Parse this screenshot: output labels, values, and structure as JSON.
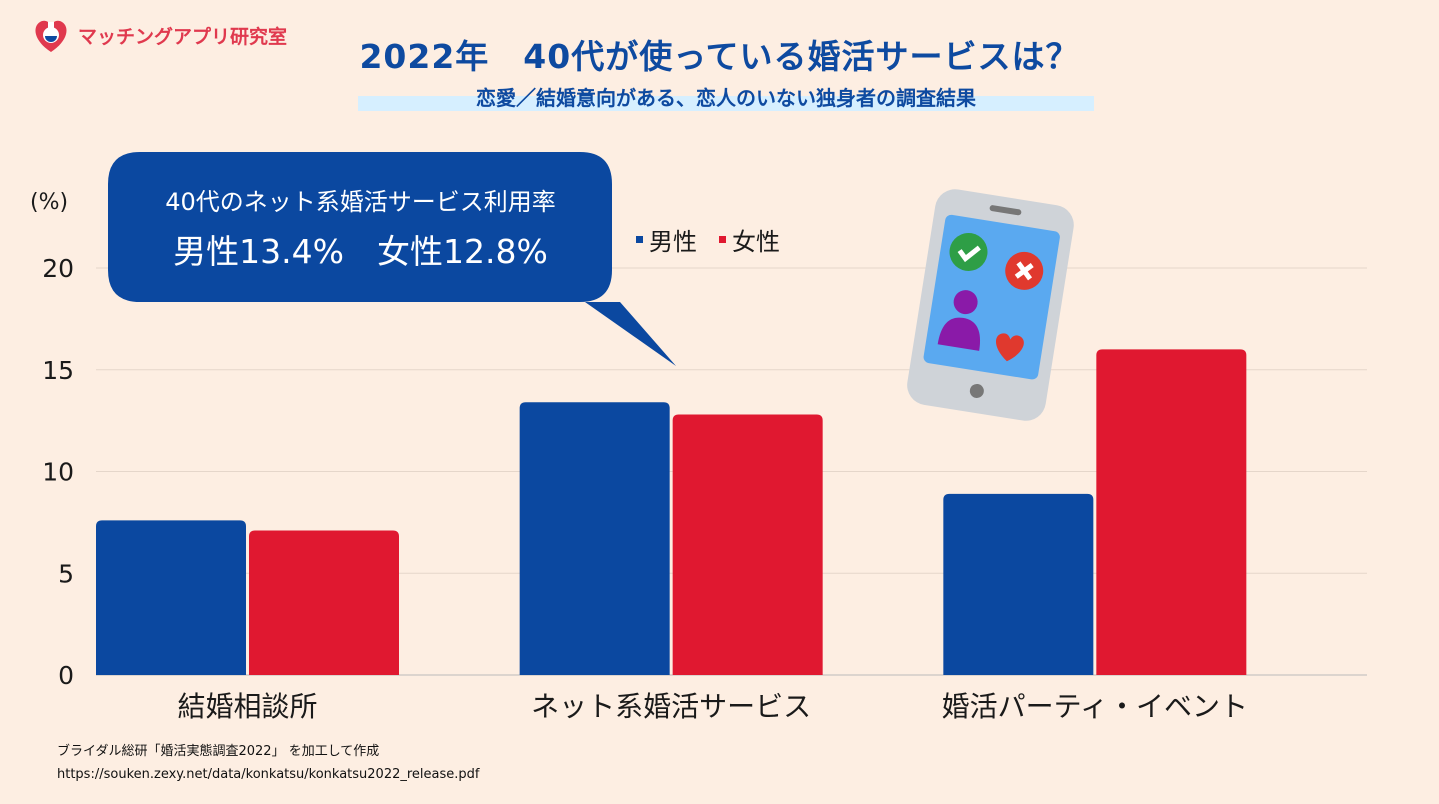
{
  "brand": {
    "name": "マッチングアプリ研究室"
  },
  "title": "2022年　40代が使っている婚活サービスは？",
  "subtitle": "恋愛／結婚意向がある、恋人のいない独身者の調査結果",
  "callout": {
    "line1": "40代のネット系婚活サービス利用率",
    "line2": "男性13.4%　女性12.8%"
  },
  "source": {
    "line1": "ブライダル総研「婚活実態調査2022」 を加工して作成",
    "line2": "https://souken.zexy.net/data/konkatsu/konkatsu2022_release.pdf"
  },
  "colors": {
    "male": "#0b48a0",
    "female": "#e01830",
    "accent": "#0e4aa0",
    "background": "#fdeee2"
  },
  "chart_data": {
    "type": "bar",
    "categories": [
      "結婚相談所",
      "ネット系婚活サービス",
      "婚活パーティ・イベント"
    ],
    "series": [
      {
        "name": "男性",
        "values": [
          7.6,
          13.4,
          8.9
        ]
      },
      {
        "name": "女性",
        "values": [
          7.1,
          12.8,
          16.0
        ]
      }
    ],
    "ylabel": "(%)",
    "ylim": [
      0,
      20
    ],
    "yticks": [
      "0",
      "5",
      "10",
      "15",
      "20"
    ],
    "grid": true,
    "legend_position": "top"
  }
}
